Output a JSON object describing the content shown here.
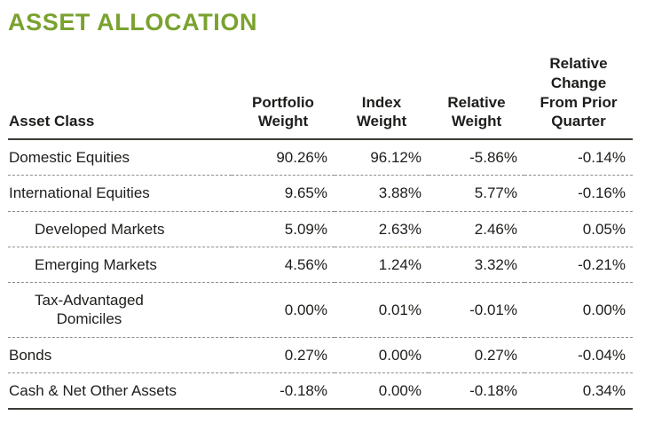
{
  "page": {
    "title": "ASSET ALLOCATION"
  },
  "colors": {
    "accent": "#79A22E"
  },
  "table": {
    "headers": [
      "Asset Class",
      "Portfolio\nWeight",
      "Index\nWeight",
      "Relative\nWeight",
      "Relative\nChange\nFrom Prior\nQuarter"
    ],
    "rows": [
      {
        "label": "Domestic Equities",
        "values": [
          "90.26%",
          "96.12%",
          "-5.86%",
          "-0.14%"
        ]
      },
      {
        "label": "International Equities",
        "values": [
          "9.65%",
          "3.88%",
          "5.77%",
          "-0.16%"
        ]
      },
      {
        "label": "Developed Markets",
        "values": [
          "5.09%",
          "2.63%",
          "2.46%",
          "0.05%"
        ]
      },
      {
        "label": "Emerging Markets",
        "values": [
          "4.56%",
          "1.24%",
          "3.32%",
          "-0.21%"
        ]
      },
      {
        "label": "Tax-Advantaged\nDomiciles",
        "values": [
          "0.00%",
          "0.01%",
          "-0.01%",
          "0.00%"
        ]
      },
      {
        "label": "Bonds",
        "values": [
          "0.27%",
          "0.00%",
          "0.27%",
          "-0.04%"
        ]
      },
      {
        "label": "Cash & Net Other Assets",
        "values": [
          "-0.18%",
          "0.00%",
          "-0.18%",
          "0.34%"
        ]
      }
    ]
  }
}
